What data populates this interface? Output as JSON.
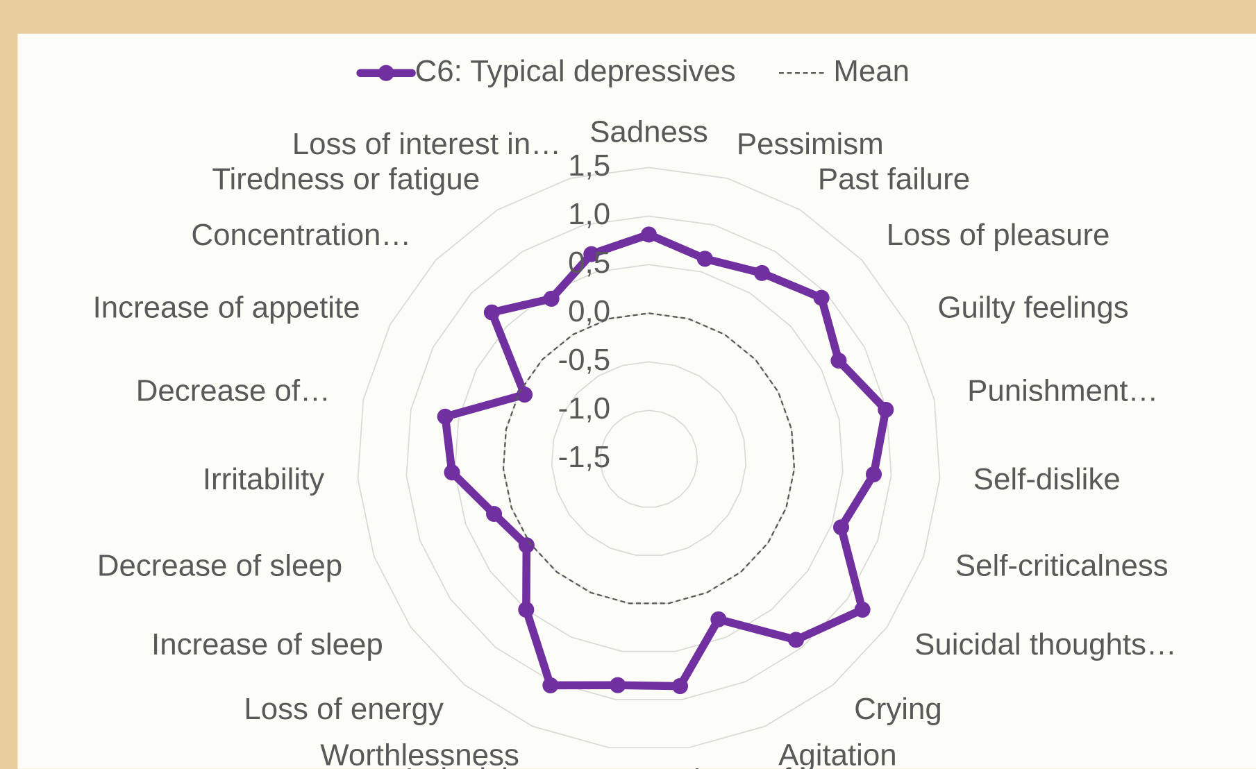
{
  "chart_data": {
    "type": "radar",
    "categories": [
      "Sadness",
      "Pessimism",
      "Past failure",
      "Loss of pleasure",
      "Guilty feelings",
      "Punishment…",
      "Self-dislike",
      "Self-criticalness",
      "Suicidal thoughts…",
      "Crying",
      "Agitation",
      "Loss of interest",
      "Indecisiveness",
      "Worthlessness",
      "Loss of energy",
      "Increase of sleep",
      "Decrease of sleep",
      "Irritability",
      "Decrease of…",
      "Increase of appetite",
      "Concentration…",
      "Tiredness or fatigue",
      "Loss of interest in…"
    ],
    "series": [
      {
        "name": "C6: Typical depressives",
        "color": "#7030a0",
        "values": [
          0.81,
          0.64,
          0.74,
          0.93,
          0.7,
          0.99,
          0.82,
          0.6,
          1.19,
          0.9,
          0.3,
          0.86,
          0.85,
          1.04,
          0.5,
          0.04,
          0.19,
          0.53,
          0.64,
          -0.06,
          0.71,
          0.43,
          0.69
        ]
      },
      {
        "name": "Mean",
        "color": "#595959",
        "dashed": true,
        "values": [
          0,
          0,
          0,
          0,
          0,
          0,
          0,
          0,
          0,
          0,
          0,
          0,
          0,
          0,
          0,
          0,
          0,
          0,
          0,
          0,
          0,
          0,
          0
        ]
      }
    ],
    "ylim": [
      -1.5,
      1.5
    ],
    "yticks": [
      {
        "value": -1.5,
        "label": "-1,5"
      },
      {
        "value": -1,
        "label": "-1,0"
      },
      {
        "value": -0.5,
        "label": "-0,5"
      },
      {
        "value": 0,
        "label": "0,0"
      },
      {
        "value": 0.5,
        "label": "0,5"
      },
      {
        "value": 1,
        "label": "1,0"
      },
      {
        "value": 1.5,
        "label": "1,5"
      }
    ],
    "grid": true,
    "legend": "top"
  }
}
